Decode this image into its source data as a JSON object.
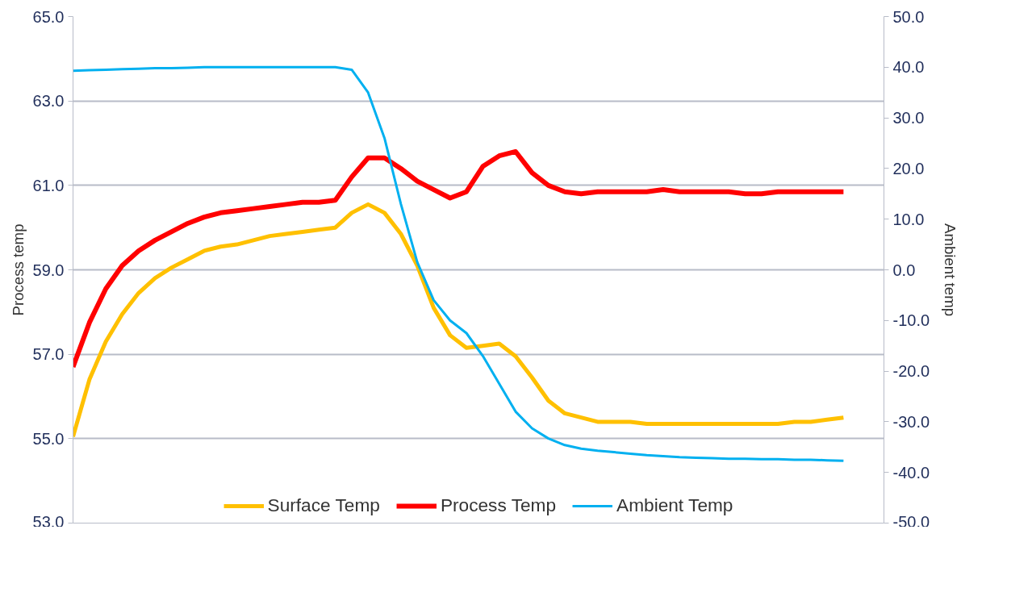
{
  "chart_data": {
    "type": "line",
    "ylabel": "Process temp",
    "y2label": "Ambient temp",
    "categories": [
      null,
      null,
      null,
      null,
      null,
      null,
      null,
      null,
      null,
      null,
      null,
      null,
      null,
      null,
      null,
      null,
      null,
      null,
      null,
      null,
      null,
      null,
      null,
      null,
      null,
      null,
      null,
      null,
      null,
      null,
      null,
      null,
      null,
      null,
      null,
      null,
      null,
      null,
      null,
      null,
      null,
      null,
      null,
      null,
      null,
      null,
      null,
      null
    ],
    "ylim": [
      53,
      65
    ],
    "yticks": [
      {
        "value": 53,
        "label": "53.0"
      },
      {
        "value": 55,
        "label": "55.0"
      },
      {
        "value": 57,
        "label": "57.0"
      },
      {
        "value": 59,
        "label": "59.0"
      },
      {
        "value": 61,
        "label": "61.0"
      },
      {
        "value": 63,
        "label": "63.0"
      },
      {
        "value": 65,
        "label": "65.0"
      }
    ],
    "y2lim": [
      -50,
      50
    ],
    "y2ticks": [
      {
        "value": -50,
        "label": "-50.0"
      },
      {
        "value": -40,
        "label": "-40.0"
      },
      {
        "value": -30,
        "label": "-30.0"
      },
      {
        "value": -20,
        "label": "-20.0"
      },
      {
        "value": -10,
        "label": "-10.0"
      },
      {
        "value": 0,
        "label": "0.0"
      },
      {
        "value": 10,
        "label": "10.0"
      },
      {
        "value": 20,
        "label": "20.0"
      },
      {
        "value": 30,
        "label": "30.0"
      },
      {
        "value": 40,
        "label": "40.0"
      },
      {
        "value": 50,
        "label": "50.0"
      }
    ],
    "grid": "y",
    "legend": "bottom",
    "marker": "none",
    "line_style": "solid",
    "series": [
      {
        "name": "Surface Temp",
        "color": "#ffc000",
        "values": [
          55.05,
          56.4,
          57.3,
          57.95,
          58.45,
          58.8,
          59.05,
          59.25,
          59.45,
          59.55,
          59.6,
          59.7,
          59.8,
          59.85,
          59.9,
          59.95,
          60.0,
          60.35,
          60.55,
          60.35,
          59.85,
          59.1,
          58.1,
          57.45,
          57.15,
          57.2,
          57.25,
          56.95,
          56.45,
          55.9,
          55.6,
          55.5,
          55.4,
          55.4,
          55.4,
          55.35,
          55.35,
          55.35,
          55.35,
          55.35,
          55.35,
          55.35,
          55.35,
          55.35,
          55.4,
          55.4,
          55.45,
          55.5
        ]
      },
      {
        "name": "Process Temp",
        "color": "#ff0000",
        "values": [
          56.7,
          57.75,
          58.55,
          59.1,
          59.45,
          59.7,
          59.9,
          60.1,
          60.25,
          60.35,
          60.4,
          60.45,
          60.5,
          60.55,
          60.6,
          60.6,
          60.65,
          61.2,
          61.65,
          61.65,
          61.4,
          61.1,
          60.9,
          60.7,
          60.85,
          61.45,
          61.7,
          61.8,
          61.3,
          61.0,
          60.85,
          60.8,
          60.85,
          60.85,
          60.85,
          60.85,
          60.9,
          60.85,
          60.85,
          60.85,
          60.85,
          60.8,
          60.8,
          60.85,
          60.85,
          60.85,
          60.85,
          60.85
        ]
      },
      {
        "name": "Ambient Temp",
        "color": "#00b0f0",
        "axis": "y2",
        "values": [
          39.3,
          39.4,
          39.5,
          39.6,
          39.7,
          39.8,
          39.8,
          39.9,
          40.0,
          40.0,
          40.0,
          40.0,
          40.0,
          40.0,
          40.0,
          40.0,
          40.0,
          39.5,
          35.0,
          26.0,
          13.0,
          1.5,
          -6.0,
          -10.0,
          -12.5,
          -17.0,
          -22.5,
          -28.0,
          -31.3,
          -33.3,
          -34.6,
          -35.3,
          -35.7,
          -36.0,
          -36.3,
          -36.6,
          -36.8,
          -37.0,
          -37.1,
          -37.2,
          -37.3,
          -37.3,
          -37.4,
          -37.4,
          -37.5,
          -37.5,
          -37.6,
          -37.7
        ]
      }
    ]
  }
}
